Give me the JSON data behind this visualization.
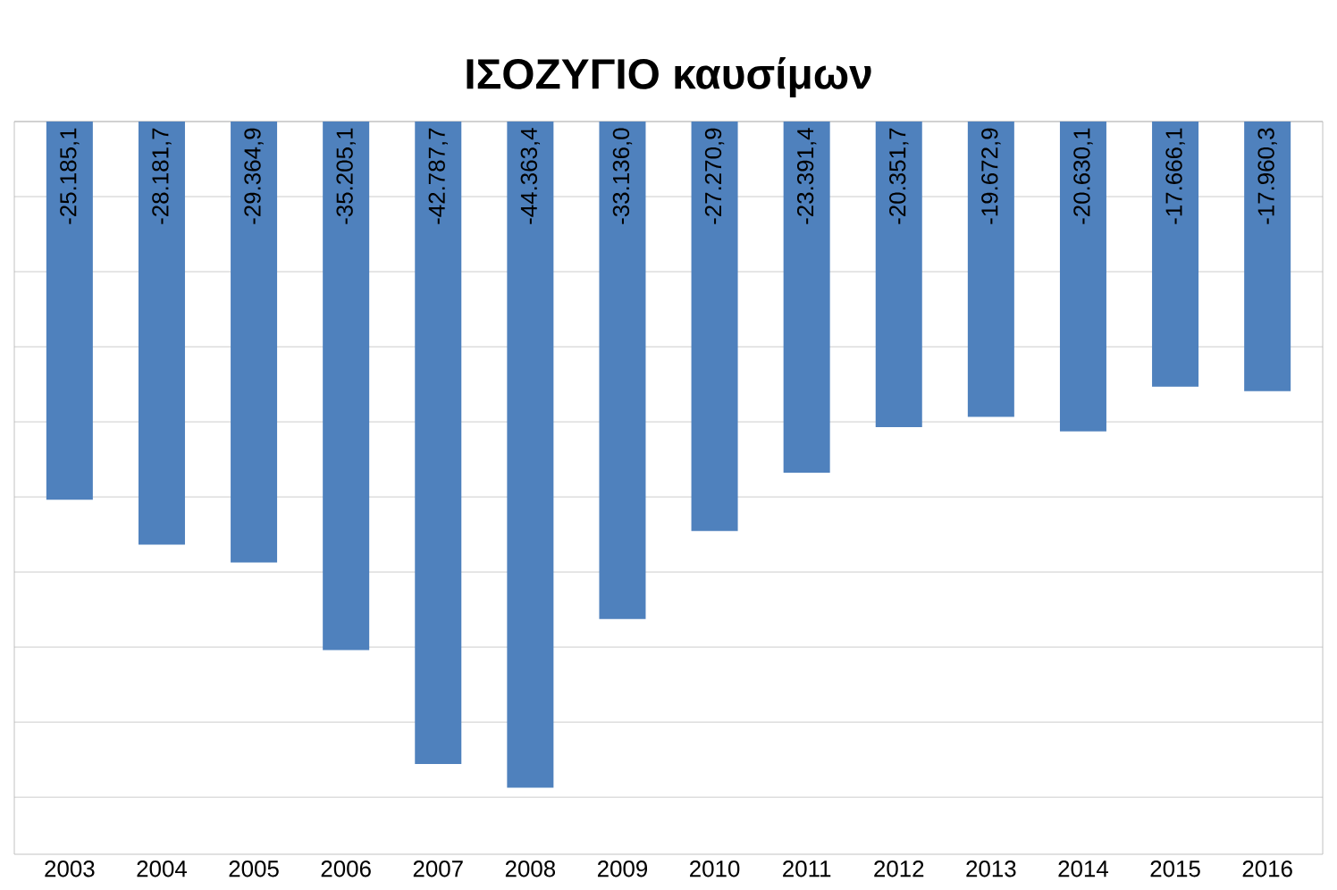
{
  "chart_data": {
    "type": "bar",
    "title": "ΙΣΟΖΥΓΙΟ  καυσίμων",
    "categories": [
      "2003",
      "2004",
      "2005",
      "2006",
      "2007",
      "2008",
      "2009",
      "2010",
      "2011",
      "2012",
      "2013",
      "2014",
      "2015",
      "2016"
    ],
    "values": [
      -25185.1,
      -28181.7,
      -29364.9,
      -35205.1,
      -42787.7,
      -44363.4,
      -33136.0,
      -27270.9,
      -23391.4,
      -20351.7,
      -19672.9,
      -20630.1,
      -17666.1,
      -17960.3
    ],
    "value_labels": [
      "-25.185,1",
      "-28.181,7",
      "-29.364,9",
      "-35.205,1",
      "-42.787,7",
      "-44.363,4",
      "-33.136,0",
      "-27.270,9",
      "-23.391,4",
      "-20.351,7",
      "-19.672,9",
      "-20.630,1",
      "-17.666,1",
      "-17.960,3"
    ],
    "color": "#4f81bd",
    "grid": "y",
    "tick_labels": "x"
  }
}
